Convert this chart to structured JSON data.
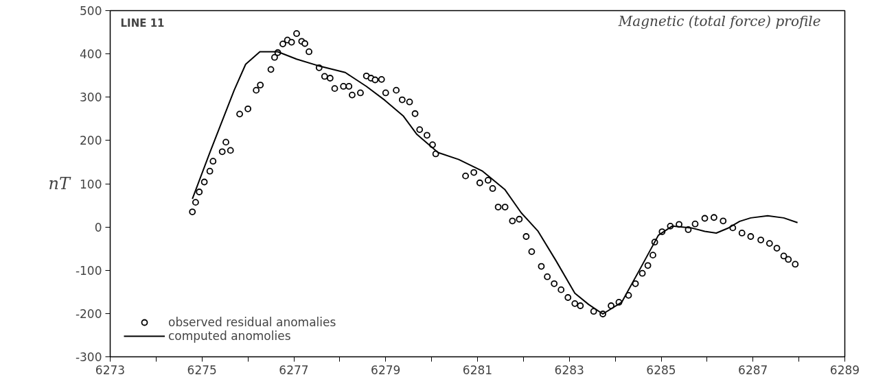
{
  "chart_data": {
    "type": "scatter",
    "title": "Magnetic (total force) profile",
    "ylabel": "nT",
    "annotations": [
      "LINE 11"
    ],
    "xlim": [
      6273,
      6289
    ],
    "ylim": [
      -300,
      500
    ],
    "xticks": [
      6273,
      {
        "value": 6274,
        "label": null
      },
      6275,
      {
        "value": 6276,
        "label": null
      },
      6277,
      {
        "value": 6278,
        "label": null
      },
      6279,
      {
        "value": 6280,
        "label": null
      },
      6281,
      {
        "value": 6282,
        "label": null
      },
      6283,
      {
        "value": 6284,
        "label": null
      },
      6285,
      {
        "value": 6286,
        "label": null
      },
      6287,
      {
        "value": 6288,
        "label": null
      },
      6289
    ],
    "yticks": [
      -300,
      -200,
      -100,
      0,
      100,
      200,
      300,
      400,
      500
    ],
    "grid": false,
    "legend": "bottom left",
    "series": [
      {
        "name": "observed residual anomalies",
        "marker": "circle",
        "color": "#000000",
        "x": [
          6274.79,
          6274.86,
          6274.94,
          6275.05,
          6275.17,
          6275.24,
          6275.44,
          6275.52,
          6275.62,
          6275.82,
          6276.0,
          6276.18,
          6276.27,
          6276.5,
          6276.58,
          6276.65,
          6276.76,
          6276.86,
          6276.95,
          6277.06,
          6277.17,
          6277.24,
          6277.33,
          6277.55,
          6277.67,
          6277.79,
          6277.89,
          6278.08,
          6278.2,
          6278.27,
          6278.45,
          6278.58,
          6278.68,
          6278.77,
          6278.91,
          6279.0,
          6279.23,
          6279.36,
          6279.52,
          6279.64,
          6279.74,
          6279.9,
          6280.02,
          6280.09,
          6280.74,
          6280.92,
          6281.05,
          6281.23,
          6281.33,
          6281.45,
          6281.6,
          6281.76,
          6281.91,
          6282.06,
          6282.18,
          6282.39,
          6282.52,
          6282.67,
          6282.82,
          6282.97,
          6283.12,
          6283.24,
          6283.53,
          6283.73,
          6283.91,
          6284.08,
          6284.29,
          6284.44,
          6284.59,
          6284.71,
          6284.82,
          6284.86,
          6285.02,
          6285.2,
          6285.39,
          6285.59,
          6285.74,
          6285.95,
          6286.15,
          6286.35,
          6286.56,
          6286.76,
          6286.95,
          6287.17,
          6287.36,
          6287.52,
          6287.67,
          6287.77,
          6287.92
        ],
        "values": [
          35,
          57,
          81,
          104,
          129,
          152,
          174,
          196,
          177,
          261,
          273,
          316,
          328,
          364,
          392,
          403,
          423,
          432,
          427,
          447,
          429,
          424,
          405,
          368,
          348,
          344,
          320,
          325,
          325,
          305,
          310,
          349,
          344,
          340,
          341,
          310,
          316,
          294,
          289,
          262,
          225,
          212,
          190,
          169,
          118,
          126,
          102,
          108,
          89,
          46,
          46,
          14,
          18,
          -22,
          -57,
          -91,
          -115,
          -131,
          -145,
          -163,
          -177,
          -182,
          -195,
          -201,
          -182,
          -174,
          -158,
          -131,
          -107,
          -89,
          -65,
          -35,
          -11,
          2,
          6,
          -6,
          7,
          20,
          22,
          14,
          -2,
          -14,
          -22,
          -30,
          -38,
          -49,
          -67,
          -75,
          -86
        ]
      },
      {
        "name": "computed anomolies",
        "type": "line",
        "line_style": "solid",
        "color": "#000000",
        "x": [
          6274.79,
          6275.17,
          6275.7,
          6275.95,
          6276.26,
          6276.65,
          6277.06,
          6277.52,
          6278.12,
          6278.58,
          6278.98,
          6279.38,
          6279.68,
          6280.14,
          6280.59,
          6281.11,
          6281.6,
          6281.95,
          6282.32,
          6282.71,
          6283.12,
          6283.42,
          6283.73,
          6284.14,
          6284.53,
          6284.94,
          6285.24,
          6285.65,
          6285.95,
          6286.2,
          6286.45,
          6286.71,
          6286.95,
          6287.32,
          6287.67,
          6287.97
        ],
        "values": [
          65,
          172,
          316,
          376,
          405,
          405,
          388,
          373,
          357,
          325,
          293,
          257,
          214,
          172,
          156,
          129,
          86,
          33,
          -10,
          -78,
          -153,
          -179,
          -201,
          -174,
          -99,
          -19,
          2,
          -2,
          -10,
          -14,
          -3,
          13,
          21,
          26,
          21,
          10
        ]
      }
    ]
  }
}
